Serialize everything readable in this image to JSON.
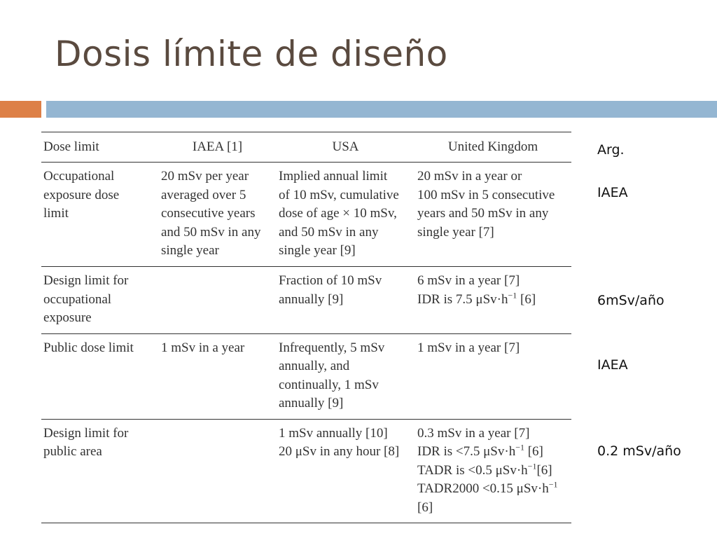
{
  "title": "Dosis límite de diseño",
  "table": {
    "headers": [
      "Dose limit",
      "IAEA [1]",
      "USA",
      "United Kingdom"
    ],
    "rows": [
      {
        "dose_limit": [
          "Occupational",
          "exposure dose",
          "limit"
        ],
        "iaea": [
          "20 mSv per year",
          "averaged over 5",
          "consecutive years",
          "and 50 mSv in any",
          "single year"
        ],
        "usa": [
          "Implied annual limit",
          "of 10 mSv, cumulative",
          "dose of age × 10 mSv,",
          "and 50 mSv in any",
          "single year [9]"
        ],
        "uk": [
          "20 mSv in a year or",
          "100 mSv in 5 consecutive",
          "years and 50 mSv in any",
          "single year [7]"
        ]
      },
      {
        "dose_limit": [
          "Design limit for",
          "occupational",
          "exposure"
        ],
        "iaea": [],
        "usa": [
          "Fraction of 10 mSv",
          "annually [9]"
        ],
        "uk": [
          "6 mSv in a year [7]",
          "IDR is 7.5 μSv·h−1 [6]"
        ]
      },
      {
        "dose_limit": [
          "Public dose limit"
        ],
        "iaea": [
          "1 mSv in a year"
        ],
        "usa": [
          "Infrequently, 5 mSv",
          "annually, and",
          "continually, 1 mSv",
          "annually [9]"
        ],
        "uk": [
          "1 mSv in a year [7]"
        ]
      },
      {
        "dose_limit": [
          "Design limit for",
          "public area"
        ],
        "iaea": [],
        "usa": [
          "1 mSv annually [10]",
          "20 μSv in any hour [8]"
        ],
        "uk": [
          "0.3 mSv in a year [7]",
          "IDR is <7.5 μSv·h−1 [6]",
          "TADR is <0.5 μSv·h−1[6]",
          "TADR2000 <0.15 μSv·h−1",
          "[6]"
        ]
      }
    ]
  },
  "side_notes": [
    "Arg.",
    "IAEA",
    "6mSv/año",
    "IAEA",
    "0.2 mSv/año"
  ],
  "colors": {
    "accent_orange": "#dd8047",
    "accent_blue": "#94b6d2",
    "title": "#5a4a3f"
  }
}
